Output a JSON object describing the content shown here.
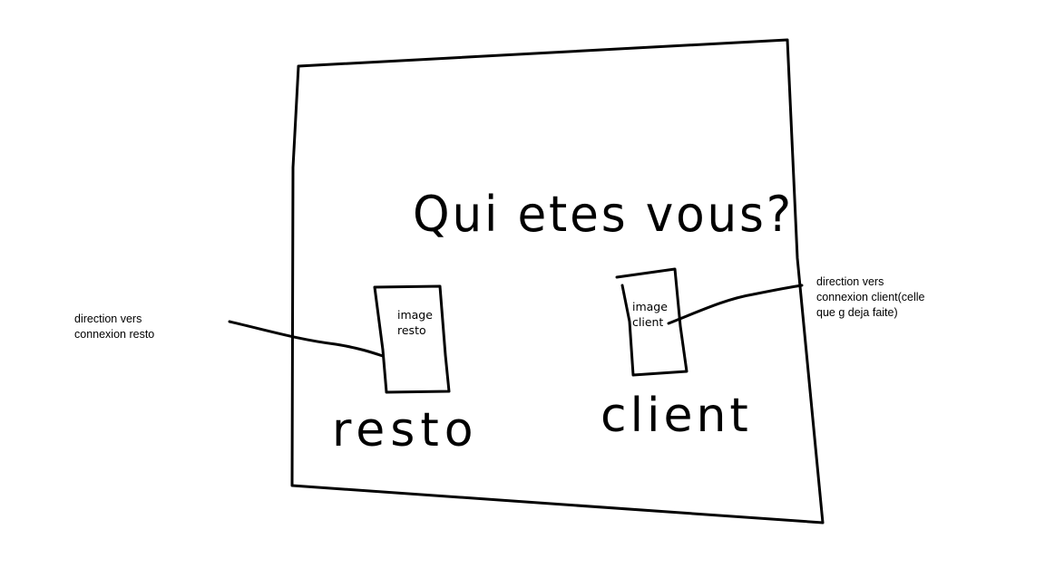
{
  "sketch": {
    "title": "Qui etes vous?",
    "resto_label": "resto",
    "client_label": "client",
    "resto_image_label": "image\nresto",
    "client_image_label": "image\nclient"
  },
  "annotations": {
    "resto_link": "direction vers\nconnexion resto",
    "client_link": "direction vers\nconnexion client(celle\nque g deja faite)"
  },
  "colors": {
    "ink": "#000000",
    "paper": "#ffffff"
  }
}
